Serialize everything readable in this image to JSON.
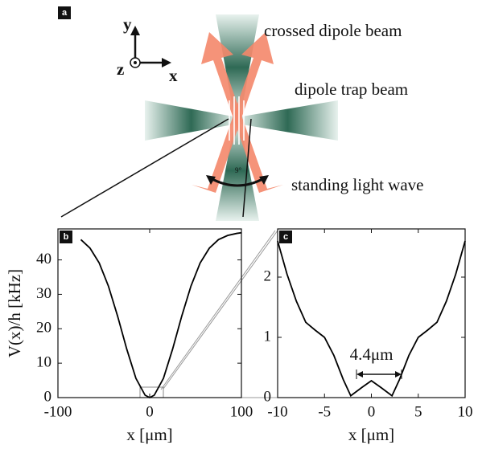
{
  "diagram": {
    "panel": "a",
    "axis_y": "y",
    "axis_x": "x",
    "axis_z": "z",
    "angle": "9°",
    "labels": [
      "crossed dipole beam",
      "dipole trap beam",
      "standing light wave"
    ]
  },
  "chart_data": [
    {
      "type": "line",
      "panel": "b",
      "ylabel": "V(x)/h [kHz]",
      "xlabel": "x [μm]",
      "color": "#000000",
      "x": [
        -75,
        -65,
        -55,
        -45,
        -35,
        -25,
        -15,
        -5,
        0,
        5,
        15,
        25,
        35,
        45,
        55,
        65,
        75,
        85,
        95,
        100
      ],
      "values": [
        45.9,
        43.4,
        39.1,
        32.4,
        23.7,
        14.1,
        5.6,
        0.7,
        0,
        0.7,
        5.6,
        14.1,
        23.7,
        32.4,
        39.1,
        43.4,
        45.9,
        47.1,
        47.7,
        47.9
      ],
      "xlim": [
        -100,
        100
      ],
      "xticks": [
        -100,
        0,
        100
      ],
      "ylim": [
        0,
        49
      ],
      "yticks": [
        0,
        10,
        20,
        30,
        40
      ]
    },
    {
      "type": "line",
      "panel": "c",
      "xlabel": "x [μm]",
      "color": "#000000",
      "annotation": "4.4μm",
      "x": [
        -10,
        -9,
        -8,
        -7,
        -6,
        -5,
        -4,
        -3,
        -2.2,
        -1,
        0,
        1,
        2.2,
        3,
        4,
        5,
        6,
        7,
        8,
        9,
        10
      ],
      "values": [
        2.6,
        2.05,
        1.6,
        1.25,
        1.12,
        1.0,
        0.7,
        0.3,
        0.03,
        0.17,
        0.28,
        0.17,
        0.03,
        0.3,
        0.7,
        1.0,
        1.12,
        1.25,
        1.6,
        2.05,
        2.6
      ],
      "xlim": [
        -10,
        10
      ],
      "xticks": [
        -10,
        -5,
        0,
        5,
        10
      ],
      "ylim": [
        0,
        2.8
      ],
      "yticks": [
        0,
        1,
        2
      ]
    }
  ]
}
